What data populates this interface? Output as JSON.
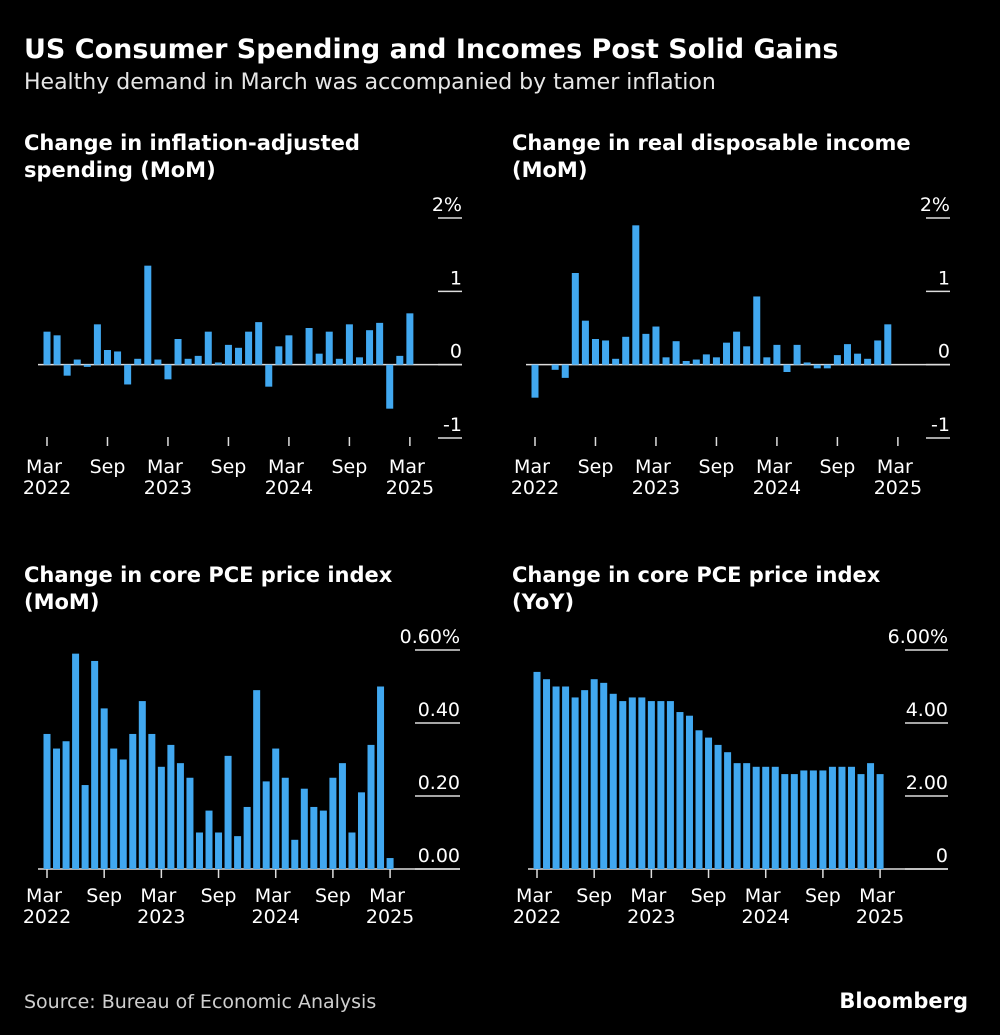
{
  "title": "US Consumer Spending and Incomes Post Solid Gains",
  "subtitle": "Healthy demand in March was accompanied by tamer inflation",
  "source": "Source: Bureau of Economic Analysis",
  "brand": "Bloomberg",
  "chart_data": [
    {
      "type": "bar",
      "title": "Change in inflation-adjusted spending (MoM)",
      "color": "#41a8f0",
      "categories": [
        "Mar 2022",
        null,
        null,
        null,
        null,
        null,
        "Sep",
        null,
        null,
        null,
        null,
        null,
        "Mar 2023",
        null,
        null,
        null,
        null,
        null,
        "Sep",
        null,
        null,
        null,
        null,
        null,
        "Mar 2024",
        null,
        null,
        null,
        null,
        null,
        "Sep",
        null,
        null,
        null,
        null,
        null,
        "Mar 2025"
      ],
      "values": [
        0.45,
        0.4,
        -0.15,
        0.07,
        -0.03,
        0.55,
        0.2,
        0.18,
        -0.27,
        0.08,
        1.35,
        0.07,
        -0.2,
        0.35,
        0.08,
        0.12,
        0.45,
        0.03,
        0.27,
        0.23,
        0.45,
        0.58,
        -0.3,
        0.25,
        0.4,
        0,
        0.5,
        0.15,
        0.45,
        0.08,
        0.55,
        0.1,
        0.47,
        0.57,
        -0.6,
        0.12,
        0.7
      ],
      "ylim": [
        -1,
        2
      ],
      "yticks": [
        {
          "value": 2,
          "label": "2%"
        },
        1,
        0,
        -1
      ]
    },
    {
      "type": "bar",
      "title": "Change in real disposable income (MoM)",
      "color": "#41a8f0",
      "categories": [
        "Mar 2022",
        null,
        null,
        null,
        null,
        null,
        "Sep",
        null,
        null,
        null,
        null,
        null,
        "Mar 2023",
        null,
        null,
        null,
        null,
        null,
        "Sep",
        null,
        null,
        null,
        null,
        null,
        "Mar 2024",
        null,
        null,
        null,
        null,
        null,
        "Sep",
        null,
        null,
        null,
        null,
        null,
        "Mar 2025"
      ],
      "values": [
        -0.45,
        0,
        -0.07,
        -0.18,
        1.25,
        0.6,
        0.35,
        0.33,
        0.08,
        0.38,
        1.9,
        0.42,
        0.52,
        0.1,
        0.32,
        0.05,
        0.07,
        0.14,
        0.1,
        0.3,
        0.45,
        0.25,
        0.93,
        0.1,
        0.27,
        -0.1,
        0.27,
        0.03,
        -0.05,
        -0.05,
        0.13,
        0.28,
        0.15,
        0.08,
        0.33,
        0.55,
        0
      ],
      "ylim": [
        -1,
        2
      ],
      "yticks": [
        {
          "value": 2,
          "label": "2%"
        },
        1,
        0,
        -1
      ]
    },
    {
      "type": "bar",
      "title": "Change in core PCE price index (MoM)",
      "color": "#41a8f0",
      "categories": [
        "Mar 2022",
        null,
        null,
        null,
        null,
        null,
        "Sep",
        null,
        null,
        null,
        null,
        null,
        "Mar 2023",
        null,
        null,
        null,
        null,
        null,
        "Sep",
        null,
        null,
        null,
        null,
        null,
        "Mar 2024",
        null,
        null,
        null,
        null,
        null,
        "Sep",
        null,
        null,
        null,
        null,
        null,
        "Mar 2025"
      ],
      "values": [
        0.37,
        0.33,
        0.35,
        0.59,
        0.23,
        0.57,
        0.44,
        0.33,
        0.3,
        0.37,
        0.46,
        0.37,
        0.28,
        0.34,
        0.29,
        0.25,
        0.1,
        0.16,
        0.1,
        0.31,
        0.09,
        0.17,
        0.49,
        0.24,
        0.33,
        0.25,
        0.08,
        0.22,
        0.17,
        0.16,
        0.25,
        0.29,
        0.1,
        0.21,
        0.34,
        0.5,
        0.03
      ],
      "ylim": [
        0,
        0.6
      ],
      "yticks": [
        {
          "value": 0.6,
          "label": "0.60%"
        },
        {
          "value": 0.4,
          "label": "0.40"
        },
        {
          "value": 0.2,
          "label": "0.20"
        },
        {
          "value": 0,
          "label": "0.00"
        }
      ]
    },
    {
      "type": "bar",
      "title": "Change in core PCE price index (YoY)",
      "color": "#41a8f0",
      "categories": [
        "Mar 2022",
        null,
        null,
        null,
        null,
        null,
        "Sep",
        null,
        null,
        null,
        null,
        null,
        "Mar 2023",
        null,
        null,
        null,
        null,
        null,
        "Sep",
        null,
        null,
        null,
        null,
        null,
        "Mar 2024",
        null,
        null,
        null,
        null,
        null,
        "Sep",
        null,
        null,
        null,
        null,
        null,
        "Mar 2025"
      ],
      "values": [
        5.4,
        5.2,
        5.0,
        5.0,
        4.7,
        4.9,
        5.2,
        5.1,
        4.8,
        4.6,
        4.7,
        4.7,
        4.6,
        4.6,
        4.6,
        4.3,
        4.2,
        3.8,
        3.6,
        3.4,
        3.2,
        2.9,
        2.9,
        2.8,
        2.8,
        2.8,
        2.6,
        2.6,
        2.7,
        2.7,
        2.7,
        2.8,
        2.8,
        2.8,
        2.6,
        2.9,
        2.6
      ],
      "ylim": [
        0,
        6
      ],
      "yticks": [
        {
          "value": 6,
          "label": "6.00%"
        },
        {
          "value": 4,
          "label": "4.00"
        },
        {
          "value": 2,
          "label": "2.00"
        },
        0
      ]
    }
  ]
}
